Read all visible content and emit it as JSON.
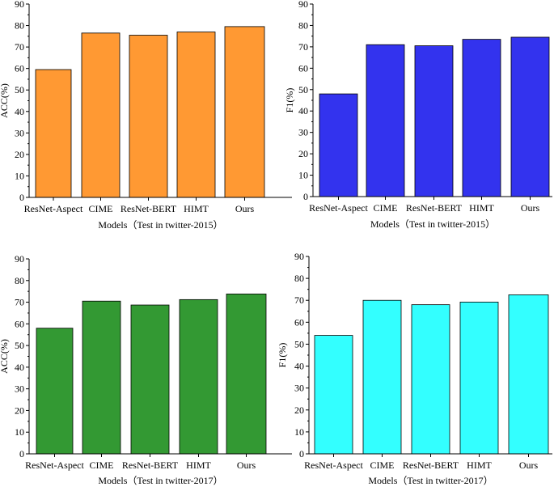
{
  "chart_data": [
    {
      "type": "bar",
      "categories": [
        "ResNet-Aspect",
        "CIME",
        "ResNet-BERT",
        "HIMT",
        "Ours"
      ],
      "values": [
        59.5,
        76.5,
        75.5,
        77,
        79.5
      ],
      "title": "",
      "xlabel": "Models（Test in twitter-2015）",
      "ylabel": "ACC(%)",
      "ylim": [
        0,
        90
      ],
      "yticks": [
        0,
        10,
        20,
        30,
        40,
        50,
        60,
        70,
        80,
        90
      ],
      "color": "#ff9933"
    },
    {
      "type": "bar",
      "categories": [
        "ResNet-Aspect",
        "CIME",
        "ResNet-BERT",
        "HIMT",
        "Ours"
      ],
      "values": [
        48,
        71,
        70.5,
        73.5,
        74.5
      ],
      "title": "",
      "xlabel": "Models（Test in twitter-2015）",
      "ylabel": "F1(%)",
      "ylim": [
        0,
        90
      ],
      "yticks": [
        0,
        10,
        20,
        30,
        40,
        50,
        60,
        70,
        80,
        90
      ],
      "color": "#3333ee"
    },
    {
      "type": "bar",
      "categories": [
        "ResNet-Aspect",
        "CIME",
        "ResNet-BERT",
        "HIMT",
        "Ours"
      ],
      "values": [
        58,
        70.5,
        68.7,
        71.2,
        73.8
      ],
      "title": "",
      "xlabel": "Models（Test in twitter-2017）",
      "ylabel": "ACC(%)",
      "ylim": [
        0,
        90
      ],
      "yticks": [
        0,
        10,
        20,
        30,
        40,
        50,
        60,
        70,
        80,
        90
      ],
      "color": "#339933"
    },
    {
      "type": "bar",
      "categories": [
        "ResNet-Aspect",
        "CIME",
        "ResNet-BERT",
        "HIMT",
        "Ours"
      ],
      "values": [
        54,
        70,
        68,
        69.2,
        72.5
      ],
      "title": "",
      "xlabel": "Models（Test in twitter-2017）",
      "ylabel": "F1(%)",
      "ylim": [
        0,
        90
      ],
      "yticks": [
        0,
        10,
        20,
        30,
        40,
        50,
        60,
        70,
        80,
        90
      ],
      "color": "#33ffff"
    }
  ]
}
